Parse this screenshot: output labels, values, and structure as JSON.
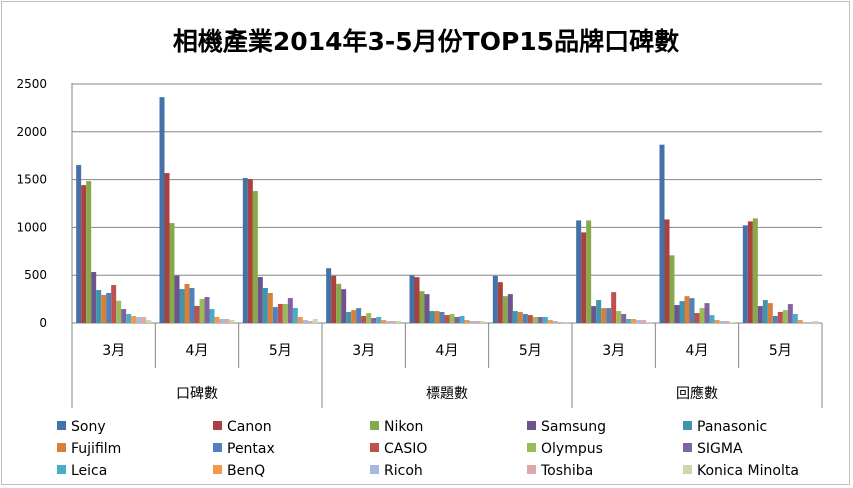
{
  "chart_data": {
    "type": "bar",
    "title": "相機產業2014年3-5月份TOP15品牌口碑數",
    "xlabel": "",
    "ylabel": "",
    "ylim": [
      0,
      2500
    ],
    "yticks": [
      "0",
      "500",
      "1000",
      "1500",
      "2000",
      "2500"
    ],
    "grid": true,
    "legend_position": "bottom",
    "groups": [
      "口碑數",
      "標題數",
      "回應數"
    ],
    "categories": [
      "3月",
      "4月",
      "5月",
      "3月",
      "4月",
      "5月",
      "3月",
      "4月",
      "5月"
    ],
    "series": [
      {
        "name": "Sony",
        "color": "#4471a8",
        "values": [
          1652,
          2362,
          1516,
          573,
          497,
          493,
          1073,
          1865,
          1021
        ]
      },
      {
        "name": "Canon",
        "color": "#a9423f",
        "values": [
          1442,
          1568,
          1505,
          493,
          479,
          427,
          948,
          1083,
          1063
        ]
      },
      {
        "name": "Nikon",
        "color": "#88a84c",
        "values": [
          1484,
          1045,
          1380,
          410,
          333,
          281,
          1073,
          708,
          1094
        ]
      },
      {
        "name": "Samsung",
        "color": "#6d548e",
        "values": [
          533,
          495,
          481,
          354,
          302,
          302,
          177,
          188,
          177
        ]
      },
      {
        "name": "Panasonic",
        "color": "#3d95ae",
        "values": [
          345,
          355,
          366,
          115,
          125,
          125,
          240,
          229,
          240
        ]
      },
      {
        "name": "Fujifilm",
        "color": "#d8803a",
        "values": [
          293,
          408,
          314,
          135,
          125,
          115,
          156,
          281,
          208
        ]
      },
      {
        "name": "Pentax",
        "color": "#4f81bd",
        "values": [
          314,
          366,
          167,
          156,
          115,
          94,
          156,
          260,
          73
        ]
      },
      {
        "name": "CASIO",
        "color": "#c0504d",
        "values": [
          397,
          178,
          199,
          73,
          83,
          83,
          323,
          104,
          115
        ]
      },
      {
        "name": "Olympus",
        "color": "#9bbb59",
        "values": [
          233,
          251,
          199,
          104,
          94,
          63,
          125,
          156,
          135
        ]
      },
      {
        "name": "SIGMA",
        "color": "#8064a2",
        "values": [
          146,
          272,
          261,
          52,
          63,
          63,
          94,
          208,
          198
        ]
      },
      {
        "name": "Leica",
        "color": "#4bacc6",
        "values": [
          94,
          146,
          157,
          63,
          73,
          63,
          42,
          83,
          94
        ]
      },
      {
        "name": "BenQ",
        "color": "#f79646",
        "values": [
          73,
          63,
          63,
          31,
          31,
          31,
          42,
          31,
          31
        ]
      },
      {
        "name": "Ricoh",
        "color": "#a9b8dc",
        "values": [
          63,
          42,
          31,
          21,
          21,
          21,
          31,
          21,
          10
        ]
      },
      {
        "name": "Toshiba",
        "color": "#dca9a8",
        "values": [
          63,
          42,
          21,
          21,
          21,
          10,
          31,
          21,
          10
        ]
      },
      {
        "name": "Konica Minolta",
        "color": "#c9d8ae",
        "values": [
          31,
          31,
          42,
          21,
          21,
          10,
          10,
          10,
          21
        ]
      }
    ]
  }
}
